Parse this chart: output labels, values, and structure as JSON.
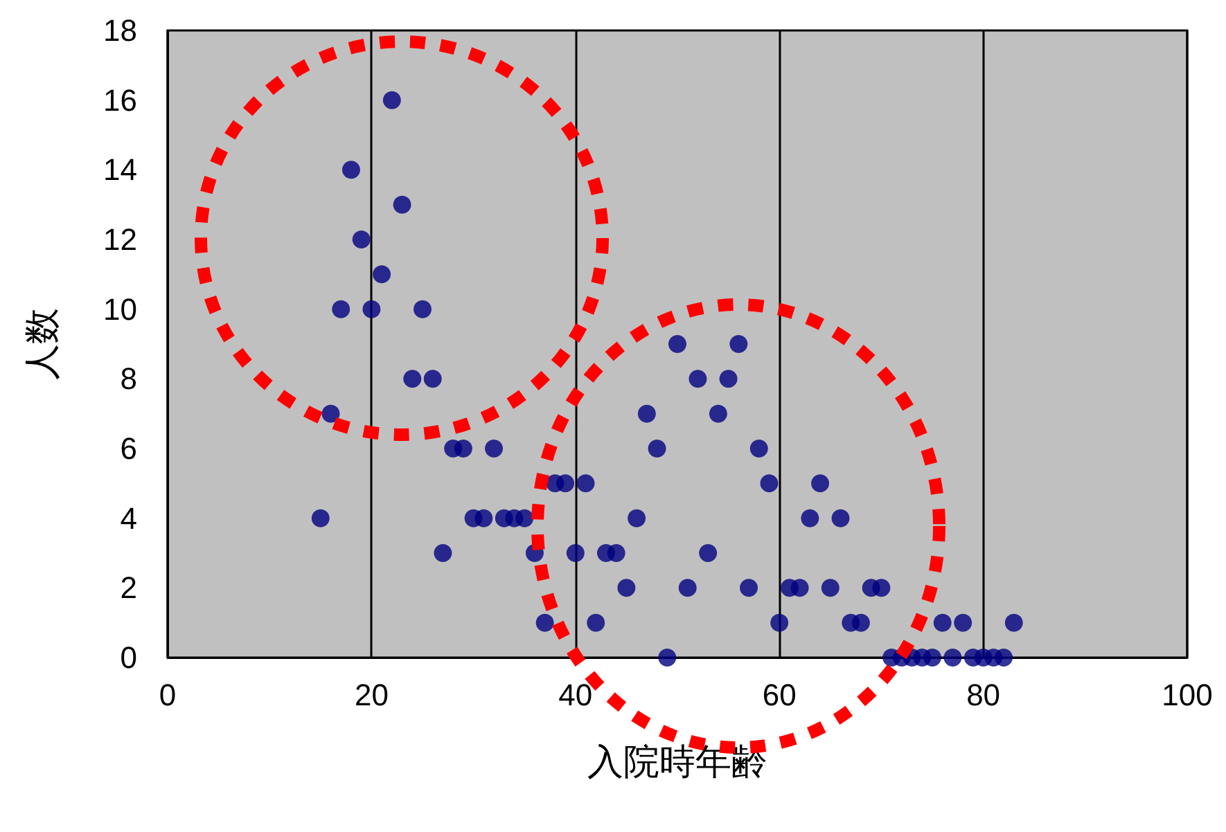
{
  "chart_data": {
    "type": "scatter",
    "xlabel": "入院時年齢",
    "ylabel": "人数",
    "x": [
      15,
      16,
      17,
      18,
      19,
      20,
      21,
      22,
      23,
      24,
      25,
      26,
      27,
      28,
      29,
      30,
      31,
      32,
      33,
      34,
      35,
      36,
      37,
      38,
      39,
      40,
      41,
      42,
      43,
      44,
      45,
      46,
      47,
      48,
      49,
      50,
      51,
      52,
      53,
      54,
      55,
      56,
      57,
      58,
      59,
      60,
      61,
      62,
      63,
      64,
      65,
      66,
      67,
      68,
      69,
      70,
      71,
      72,
      73,
      74,
      75,
      76,
      77,
      78,
      79,
      80,
      81,
      82,
      83
    ],
    "values": [
      4,
      7,
      10,
      14,
      12,
      10,
      11,
      16,
      13,
      8,
      10,
      8,
      3,
      6,
      6,
      4,
      4,
      6,
      4,
      4,
      4,
      3,
      1,
      5,
      5,
      3,
      5,
      1,
      3,
      3,
      2,
      4,
      7,
      6,
      0,
      9,
      2,
      8,
      3,
      7,
      8,
      9,
      2,
      6,
      5,
      1,
      2,
      2,
      4,
      5,
      2,
      4,
      1,
      1,
      2,
      2,
      0,
      0,
      0,
      0,
      0,
      1,
      0,
      1,
      0,
      0,
      0,
      0,
      1
    ],
    "color": "#000080",
    "marker": "circle",
    "xlim": [
      0,
      100
    ],
    "xticks": [
      0,
      20,
      40,
      60,
      80,
      100
    ],
    "ylim": [
      0,
      18
    ],
    "yticks": [
      0,
      2,
      4,
      6,
      8,
      10,
      12,
      14,
      16,
      18
    ],
    "grid": "x"
  }
}
